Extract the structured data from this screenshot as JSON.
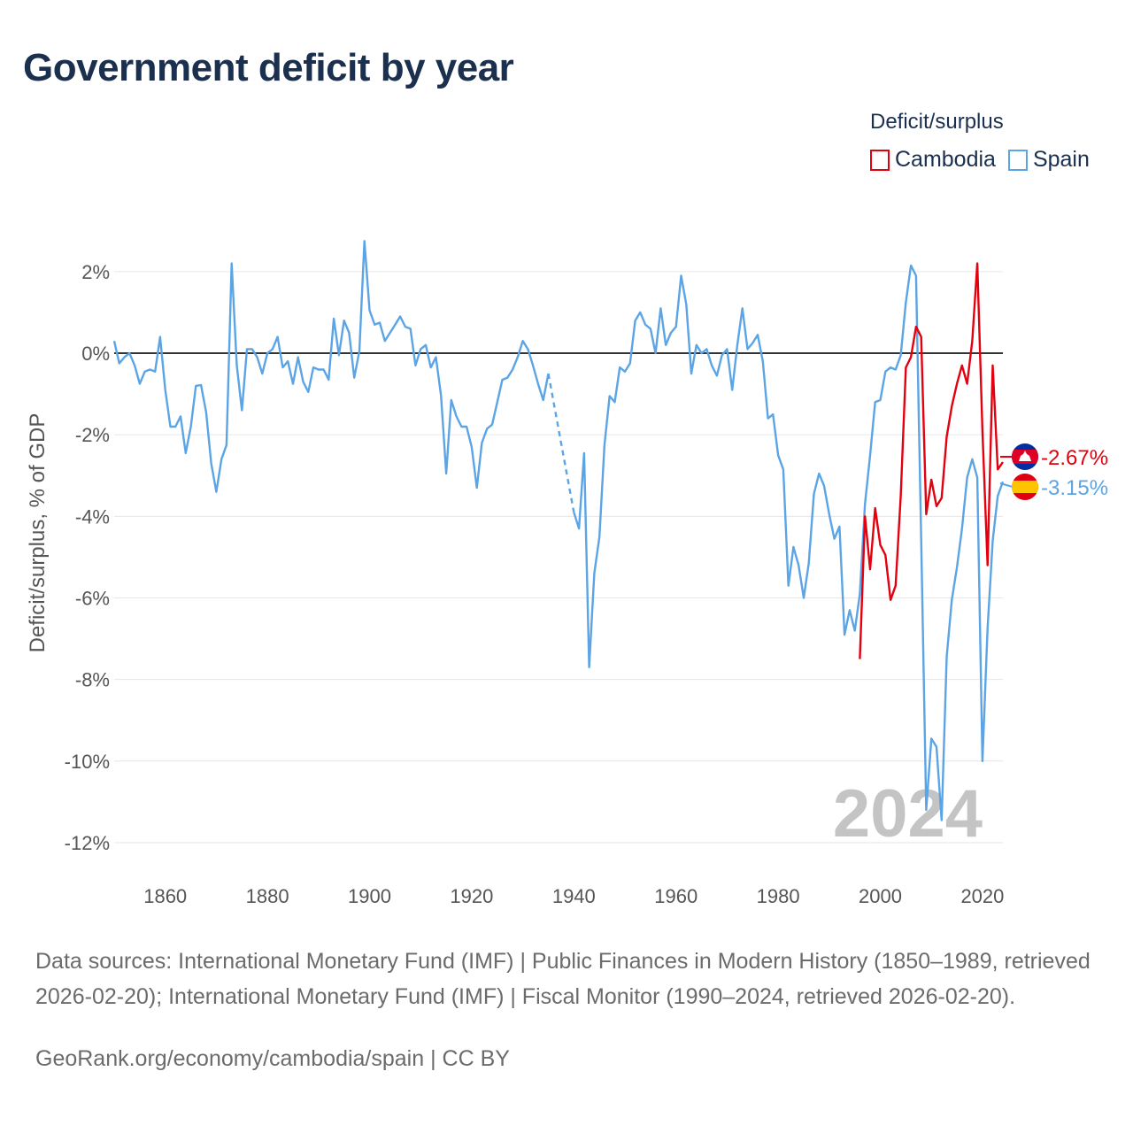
{
  "header": {
    "title": "Government deficit by year"
  },
  "legend": {
    "title": "Deficit/surplus",
    "items": [
      {
        "label": "Cambodia",
        "color": "#e3000f"
      },
      {
        "label": "Spain",
        "color": "#5ba4e5"
      }
    ]
  },
  "footer": {
    "sources": "Data sources: International Monetary Fund (IMF) | Public Finances in Modern History (1850–1989, retrieved 2026-02-20); International Monetary Fund (IMF) | Fiscal Monitor (1990–2024, retrieved 2026-02-20).",
    "credit": "GeoRank.org/economy/cambodia/spain | CC BY"
  },
  "chart_data": {
    "type": "line",
    "title": "Government deficit by year",
    "xlabel": "",
    "ylabel": "Deficit/surplus, % of GDP",
    "xlim": [
      1850,
      2024
    ],
    "ylim": [
      -12.5,
      2.8
    ],
    "x_ticks": [
      1860,
      1880,
      1900,
      1920,
      1940,
      1960,
      1980,
      2000,
      2020
    ],
    "y_ticks": [
      2,
      0,
      -2,
      -4,
      -6,
      -8,
      -10,
      -12
    ],
    "y_tick_labels": [
      "2%",
      "0%",
      "-2%",
      "-4%",
      "-6%",
      "-8%",
      "-10%",
      "-12%"
    ],
    "x_tick_labels": [
      "1860",
      "1880",
      "1900",
      "1920",
      "1940",
      "1960",
      "1980",
      "2000",
      "2020"
    ],
    "watermark_year": "2024",
    "zero_line": true,
    "grid": true,
    "series": [
      {
        "name": "Spain",
        "color": "#5ba4e5",
        "end_label": "-3.15%",
        "gap": [
          1935,
          1940
        ],
        "points": [
          [
            1850,
            0.3
          ],
          [
            1851,
            -0.25
          ],
          [
            1852,
            -0.1
          ],
          [
            1853,
            0.0
          ],
          [
            1854,
            -0.3
          ],
          [
            1855,
            -0.75
          ],
          [
            1856,
            -0.45
          ],
          [
            1857,
            -0.4
          ],
          [
            1858,
            -0.45
          ],
          [
            1859,
            0.4
          ],
          [
            1860,
            -0.9
          ],
          [
            1861,
            -1.8
          ],
          [
            1862,
            -1.8
          ],
          [
            1863,
            -1.55
          ],
          [
            1864,
            -2.45
          ],
          [
            1865,
            -1.8
          ],
          [
            1866,
            -0.8
          ],
          [
            1867,
            -0.78
          ],
          [
            1868,
            -1.45
          ],
          [
            1869,
            -2.7
          ],
          [
            1870,
            -3.4
          ],
          [
            1871,
            -2.6
          ],
          [
            1872,
            -2.25
          ],
          [
            1873,
            2.2
          ],
          [
            1874,
            -0.3
          ],
          [
            1875,
            -1.4
          ],
          [
            1876,
            0.1
          ],
          [
            1877,
            0.1
          ],
          [
            1878,
            -0.1
          ],
          [
            1879,
            -0.5
          ],
          [
            1880,
            0.0
          ],
          [
            1881,
            0.1
          ],
          [
            1882,
            0.4
          ],
          [
            1883,
            -0.35
          ],
          [
            1884,
            -0.2
          ],
          [
            1885,
            -0.75
          ],
          [
            1886,
            -0.1
          ],
          [
            1887,
            -0.7
          ],
          [
            1888,
            -0.95
          ],
          [
            1889,
            -0.35
          ],
          [
            1890,
            -0.4
          ],
          [
            1891,
            -0.4
          ],
          [
            1892,
            -0.65
          ],
          [
            1893,
            0.85
          ],
          [
            1894,
            -0.05
          ],
          [
            1895,
            0.8
          ],
          [
            1896,
            0.5
          ],
          [
            1897,
            -0.6
          ],
          [
            1898,
            0.05
          ],
          [
            1899,
            2.75
          ],
          [
            1900,
            1.05
          ],
          [
            1901,
            0.7
          ],
          [
            1902,
            0.75
          ],
          [
            1903,
            0.3
          ],
          [
            1904,
            0.5
          ],
          [
            1905,
            0.7
          ],
          [
            1906,
            0.9
          ],
          [
            1907,
            0.65
          ],
          [
            1908,
            0.6
          ],
          [
            1909,
            -0.3
          ],
          [
            1910,
            0.1
          ],
          [
            1911,
            0.2
          ],
          [
            1912,
            -0.35
          ],
          [
            1913,
            -0.1
          ],
          [
            1914,
            -1.05
          ],
          [
            1915,
            -2.95
          ],
          [
            1916,
            -1.15
          ],
          [
            1917,
            -1.55
          ],
          [
            1918,
            -1.8
          ],
          [
            1919,
            -1.8
          ],
          [
            1920,
            -2.3
          ],
          [
            1921,
            -3.3
          ],
          [
            1922,
            -2.2
          ],
          [
            1923,
            -1.85
          ],
          [
            1924,
            -1.75
          ],
          [
            1925,
            -1.2
          ],
          [
            1926,
            -0.65
          ],
          [
            1927,
            -0.6
          ],
          [
            1928,
            -0.4
          ],
          [
            1929,
            -0.1
          ],
          [
            1930,
            0.3
          ],
          [
            1931,
            0.1
          ],
          [
            1932,
            -0.3
          ],
          [
            1933,
            -0.75
          ],
          [
            1934,
            -1.15
          ],
          [
            1935,
            -0.5
          ],
          [
            1940,
            -3.9
          ],
          [
            1941,
            -4.3
          ],
          [
            1942,
            -2.45
          ],
          [
            1943,
            -7.7
          ],
          [
            1944,
            -5.4
          ],
          [
            1945,
            -4.5
          ],
          [
            1946,
            -2.25
          ],
          [
            1947,
            -1.05
          ],
          [
            1948,
            -1.2
          ],
          [
            1949,
            -0.35
          ],
          [
            1950,
            -0.45
          ],
          [
            1951,
            -0.25
          ],
          [
            1952,
            0.8
          ],
          [
            1953,
            1.0
          ],
          [
            1954,
            0.7
          ],
          [
            1955,
            0.6
          ],
          [
            1956,
            0.0
          ],
          [
            1957,
            1.1
          ],
          [
            1958,
            0.2
          ],
          [
            1959,
            0.5
          ],
          [
            1960,
            0.65
          ],
          [
            1961,
            1.9
          ],
          [
            1962,
            1.2
          ],
          [
            1963,
            -0.5
          ],
          [
            1964,
            0.2
          ],
          [
            1965,
            0.0
          ],
          [
            1966,
            0.1
          ],
          [
            1967,
            -0.3
          ],
          [
            1968,
            -0.55
          ],
          [
            1969,
            -0.05
          ],
          [
            1970,
            0.1
          ],
          [
            1971,
            -0.9
          ],
          [
            1972,
            0.2
          ],
          [
            1973,
            1.1
          ],
          [
            1974,
            0.1
          ],
          [
            1975,
            0.25
          ],
          [
            1976,
            0.45
          ],
          [
            1977,
            -0.2
          ],
          [
            1978,
            -1.6
          ],
          [
            1979,
            -1.5
          ],
          [
            1980,
            -2.5
          ],
          [
            1981,
            -2.85
          ],
          [
            1982,
            -5.7
          ],
          [
            1983,
            -4.75
          ],
          [
            1984,
            -5.2
          ],
          [
            1985,
            -6.0
          ],
          [
            1986,
            -5.15
          ],
          [
            1987,
            -3.45
          ],
          [
            1988,
            -2.95
          ],
          [
            1989,
            -3.25
          ],
          [
            1990,
            -3.95
          ],
          [
            1991,
            -4.55
          ],
          [
            1992,
            -4.25
          ],
          [
            1993,
            -6.9
          ],
          [
            1994,
            -6.3
          ],
          [
            1995,
            -6.8
          ],
          [
            1996,
            -5.9
          ],
          [
            1997,
            -3.7
          ],
          [
            1998,
            -2.5
          ],
          [
            1999,
            -1.2
          ],
          [
            2000,
            -1.15
          ],
          [
            2001,
            -0.45
          ],
          [
            2002,
            -0.35
          ],
          [
            2003,
            -0.4
          ],
          [
            2004,
            -0.05
          ],
          [
            2005,
            1.25
          ],
          [
            2006,
            2.15
          ],
          [
            2007,
            1.9
          ],
          [
            2008,
            -4.55
          ],
          [
            2009,
            -11.2
          ],
          [
            2010,
            -9.45
          ],
          [
            2011,
            -9.65
          ],
          [
            2012,
            -11.45
          ],
          [
            2013,
            -7.45
          ],
          [
            2014,
            -6.05
          ],
          [
            2015,
            -5.25
          ],
          [
            2016,
            -4.3
          ],
          [
            2017,
            -3.05
          ],
          [
            2018,
            -2.6
          ],
          [
            2019,
            -3.05
          ],
          [
            2020,
            -10.0
          ],
          [
            2021,
            -6.75
          ],
          [
            2022,
            -4.6
          ],
          [
            2023,
            -3.5
          ],
          [
            2024,
            -3.15
          ]
        ]
      },
      {
        "name": "Cambodia",
        "color": "#e3000f",
        "end_label": "-2.67%",
        "points": [
          [
            1996,
            -7.5
          ],
          [
            1997,
            -4.0
          ],
          [
            1998,
            -5.3
          ],
          [
            1999,
            -3.8
          ],
          [
            2000,
            -4.7
          ],
          [
            2001,
            -4.95
          ],
          [
            2002,
            -6.05
          ],
          [
            2003,
            -5.7
          ],
          [
            2004,
            -3.5
          ],
          [
            2005,
            -0.35
          ],
          [
            2006,
            -0.1
          ],
          [
            2007,
            0.65
          ],
          [
            2008,
            0.4
          ],
          [
            2009,
            -3.95
          ],
          [
            2010,
            -3.1
          ],
          [
            2011,
            -3.75
          ],
          [
            2012,
            -3.55
          ],
          [
            2013,
            -2.05
          ],
          [
            2014,
            -1.3
          ],
          [
            2015,
            -0.75
          ],
          [
            2016,
            -0.3
          ],
          [
            2017,
            -0.75
          ],
          [
            2018,
            0.3
          ],
          [
            2019,
            2.2
          ],
          [
            2020,
            -1.9
          ],
          [
            2021,
            -5.2
          ],
          [
            2022,
            -0.3
          ],
          [
            2023,
            -2.85
          ],
          [
            2024,
            -2.67
          ]
        ]
      }
    ]
  }
}
